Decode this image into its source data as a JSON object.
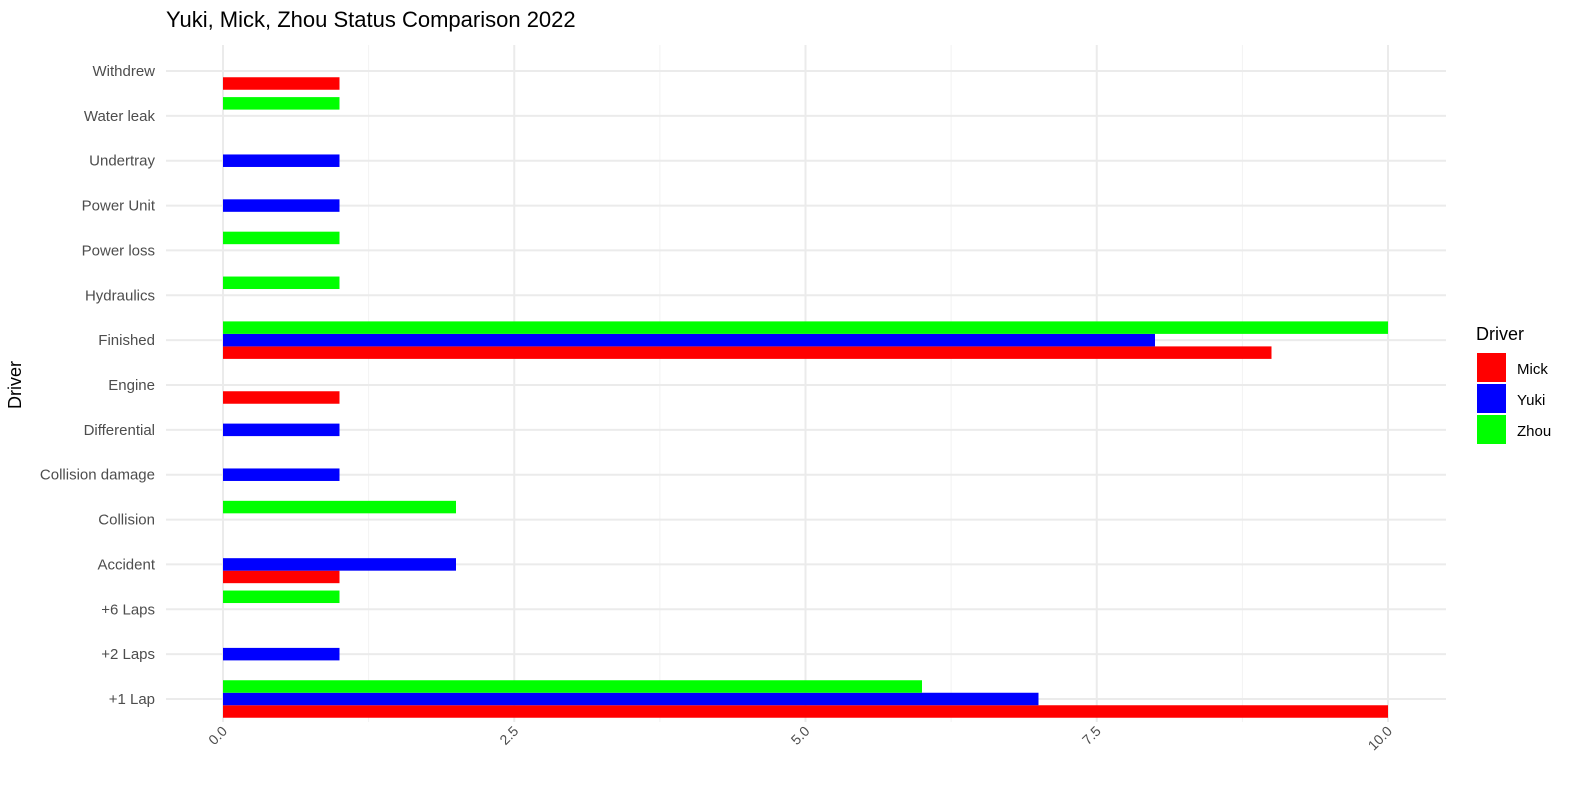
{
  "chart_data": {
    "type": "bar",
    "orientation": "horizontal",
    "title": "Yuki, Mick, Zhou Status Comparison 2022",
    "xlabel": "",
    "ylabel": "Driver",
    "xlim": [
      0,
      10.5
    ],
    "x_ticks": [
      "0.0",
      "2.5",
      "5.0",
      "7.5",
      "10.0"
    ],
    "x_tick_values": [
      0,
      2.5,
      5,
      7.5,
      10
    ],
    "grid": true,
    "legend_position": "right",
    "legend_title": "Driver",
    "categories": [
      "+1 Lap",
      "+2 Laps",
      "+6 Laps",
      "Accident",
      "Collision",
      "Collision damage",
      "Differential",
      "Engine",
      "Finished",
      "Hydraulics",
      "Power loss",
      "Power Unit",
      "Undertray",
      "Water leak",
      "Withdrew"
    ],
    "series": [
      {
        "name": "Mick",
        "color": "#ff0000",
        "values": [
          10,
          0,
          0,
          1,
          0,
          0,
          0,
          1,
          9,
          0,
          0,
          0,
          0,
          0,
          1
        ]
      },
      {
        "name": "Yuki",
        "color": "#0000ff",
        "values": [
          7,
          1,
          0,
          2,
          0,
          1,
          1,
          0,
          8,
          0,
          0,
          1,
          1,
          0,
          0
        ]
      },
      {
        "name": "Zhou",
        "color": "#00ff00",
        "values": [
          6,
          0,
          1,
          0,
          2,
          0,
          0,
          0,
          10,
          1,
          1,
          0,
          0,
          1,
          0
        ]
      }
    ]
  }
}
